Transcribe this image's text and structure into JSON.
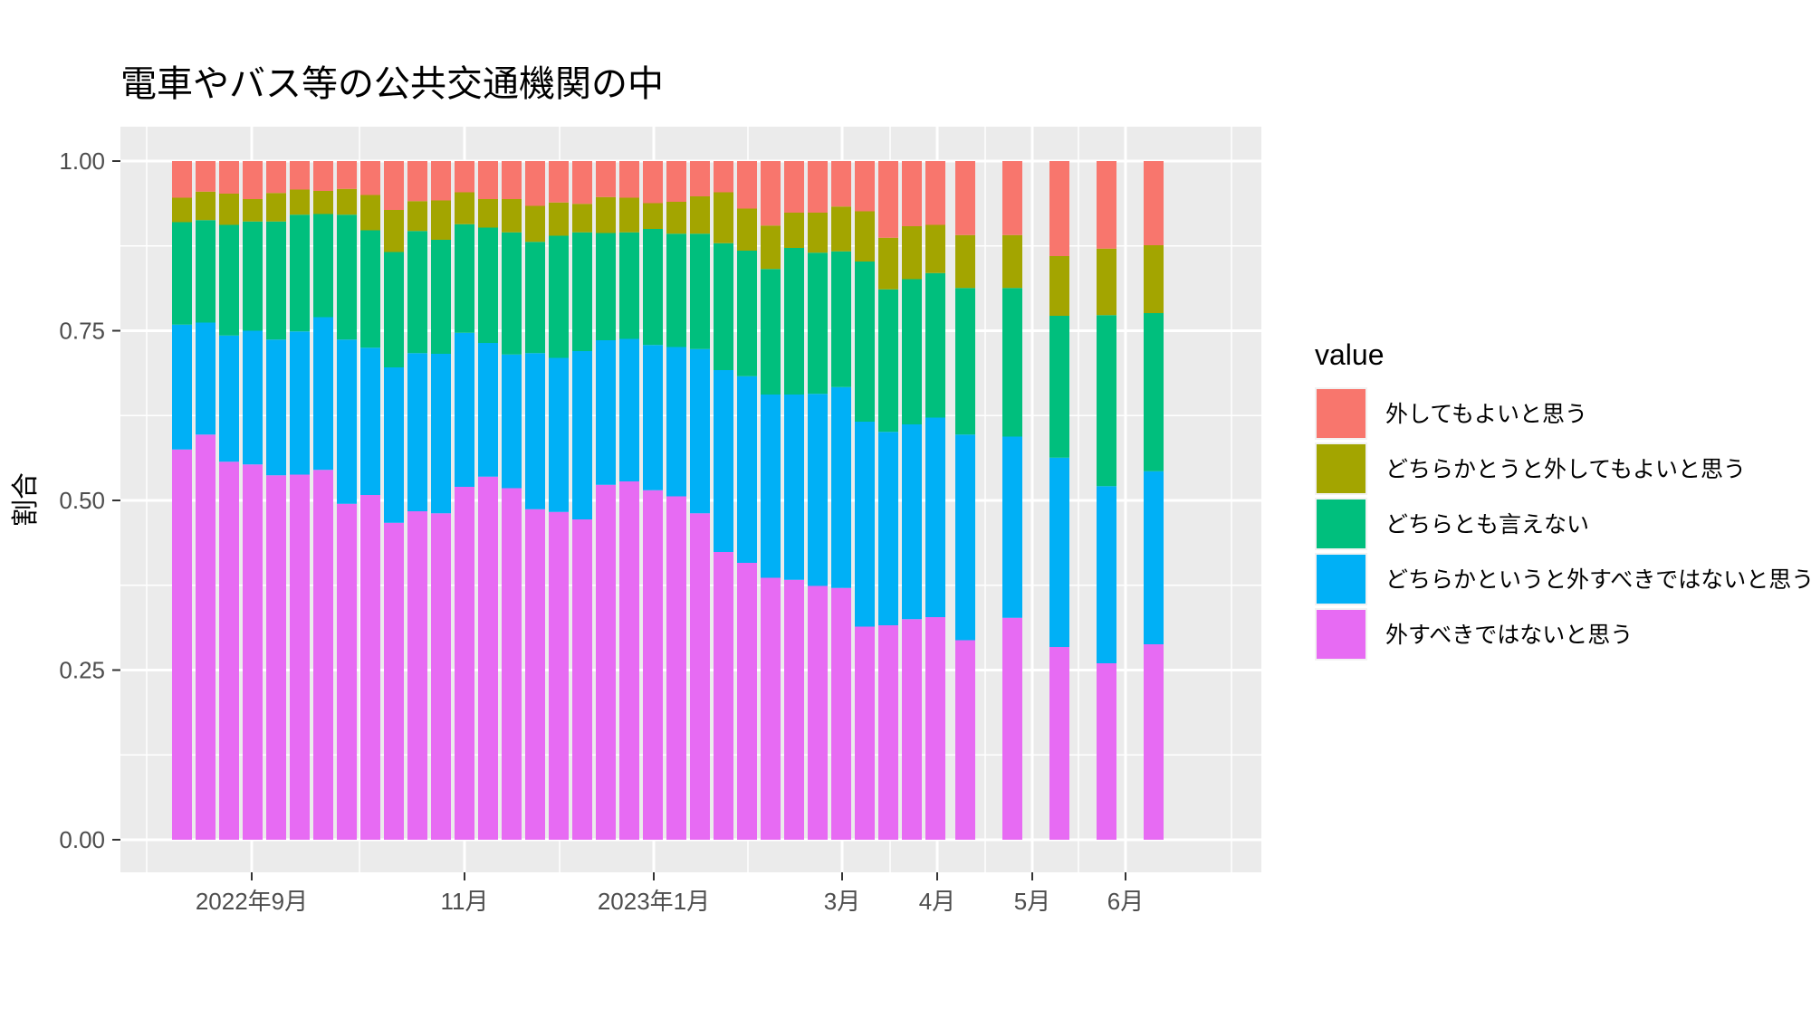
{
  "chart_data": {
    "type": "bar",
    "stacked": true,
    "title": "電車やバス等の公共交通機関の中",
    "xlabel": "",
    "ylabel": "割合",
    "ylim": [
      0,
      1
    ],
    "y_ticks": [
      "0.00",
      "0.25",
      "0.50",
      "0.75",
      "1.00"
    ],
    "x_tick_labels": [
      "2022年9月",
      "11月",
      "2023年1月",
      "3月",
      "4月",
      "5月",
      "6月"
    ],
    "legend_title": "value",
    "legend_position": "right",
    "grid": true,
    "series": [
      {
        "name": "外すべきではないと思う",
        "color": "#E76BF3",
        "values": [
          0.575,
          0.597,
          0.557,
          0.553,
          0.537,
          0.538,
          0.545,
          0.495,
          0.508,
          0.467,
          0.484,
          0.481,
          0.52,
          0.535,
          0.518,
          0.487,
          0.483,
          0.472,
          0.523,
          0.528,
          0.515,
          0.506,
          0.481,
          0.424,
          0.408,
          0.386,
          0.383,
          0.374,
          0.371,
          0.314,
          0.316,
          0.325,
          0.328,
          0.294,
          0.327,
          0.284,
          0.26,
          0.288
        ]
      },
      {
        "name": "どちらかというと外すべきではないと思う",
        "color": "#00B0F6",
        "values": [
          0.184,
          0.165,
          0.186,
          0.197,
          0.2,
          0.211,
          0.225,
          0.242,
          0.217,
          0.229,
          0.233,
          0.235,
          0.227,
          0.197,
          0.197,
          0.23,
          0.227,
          0.248,
          0.213,
          0.21,
          0.214,
          0.22,
          0.242,
          0.268,
          0.275,
          0.27,
          0.273,
          0.283,
          0.296,
          0.302,
          0.285,
          0.287,
          0.294,
          0.303,
          0.267,
          0.279,
          0.261,
          0.255
        ]
      },
      {
        "name": "どちらとも言えない",
        "color": "#00BF7D",
        "values": [
          0.151,
          0.151,
          0.163,
          0.161,
          0.174,
          0.172,
          0.152,
          0.184,
          0.173,
          0.17,
          0.18,
          0.168,
          0.16,
          0.17,
          0.18,
          0.164,
          0.18,
          0.175,
          0.158,
          0.157,
          0.171,
          0.167,
          0.17,
          0.187,
          0.185,
          0.185,
          0.216,
          0.208,
          0.2,
          0.236,
          0.21,
          0.214,
          0.213,
          0.216,
          0.219,
          0.209,
          0.252,
          0.233
        ]
      },
      {
        "name": "どちらかとうと外してもよいと思う",
        "color": "#A3A500",
        "values": [
          0.036,
          0.042,
          0.046,
          0.033,
          0.042,
          0.037,
          0.034,
          0.038,
          0.052,
          0.062,
          0.044,
          0.058,
          0.047,
          0.042,
          0.049,
          0.053,
          0.049,
          0.042,
          0.053,
          0.051,
          0.038,
          0.047,
          0.055,
          0.075,
          0.062,
          0.064,
          0.052,
          0.059,
          0.066,
          0.074,
          0.076,
          0.078,
          0.071,
          0.078,
          0.078,
          0.088,
          0.098,
          0.1
        ]
      },
      {
        "name": "外してもよいと思う",
        "color": "#F8766D",
        "values": [
          0.054,
          0.045,
          0.048,
          0.056,
          0.047,
          0.042,
          0.044,
          0.041,
          0.05,
          0.072,
          0.059,
          0.058,
          0.046,
          0.056,
          0.056,
          0.066,
          0.061,
          0.063,
          0.053,
          0.054,
          0.062,
          0.06,
          0.052,
          0.046,
          0.07,
          0.095,
          0.076,
          0.076,
          0.067,
          0.074,
          0.113,
          0.096,
          0.094,
          0.109,
          0.109,
          0.14,
          0.129,
          0.124
        ]
      }
    ]
  }
}
